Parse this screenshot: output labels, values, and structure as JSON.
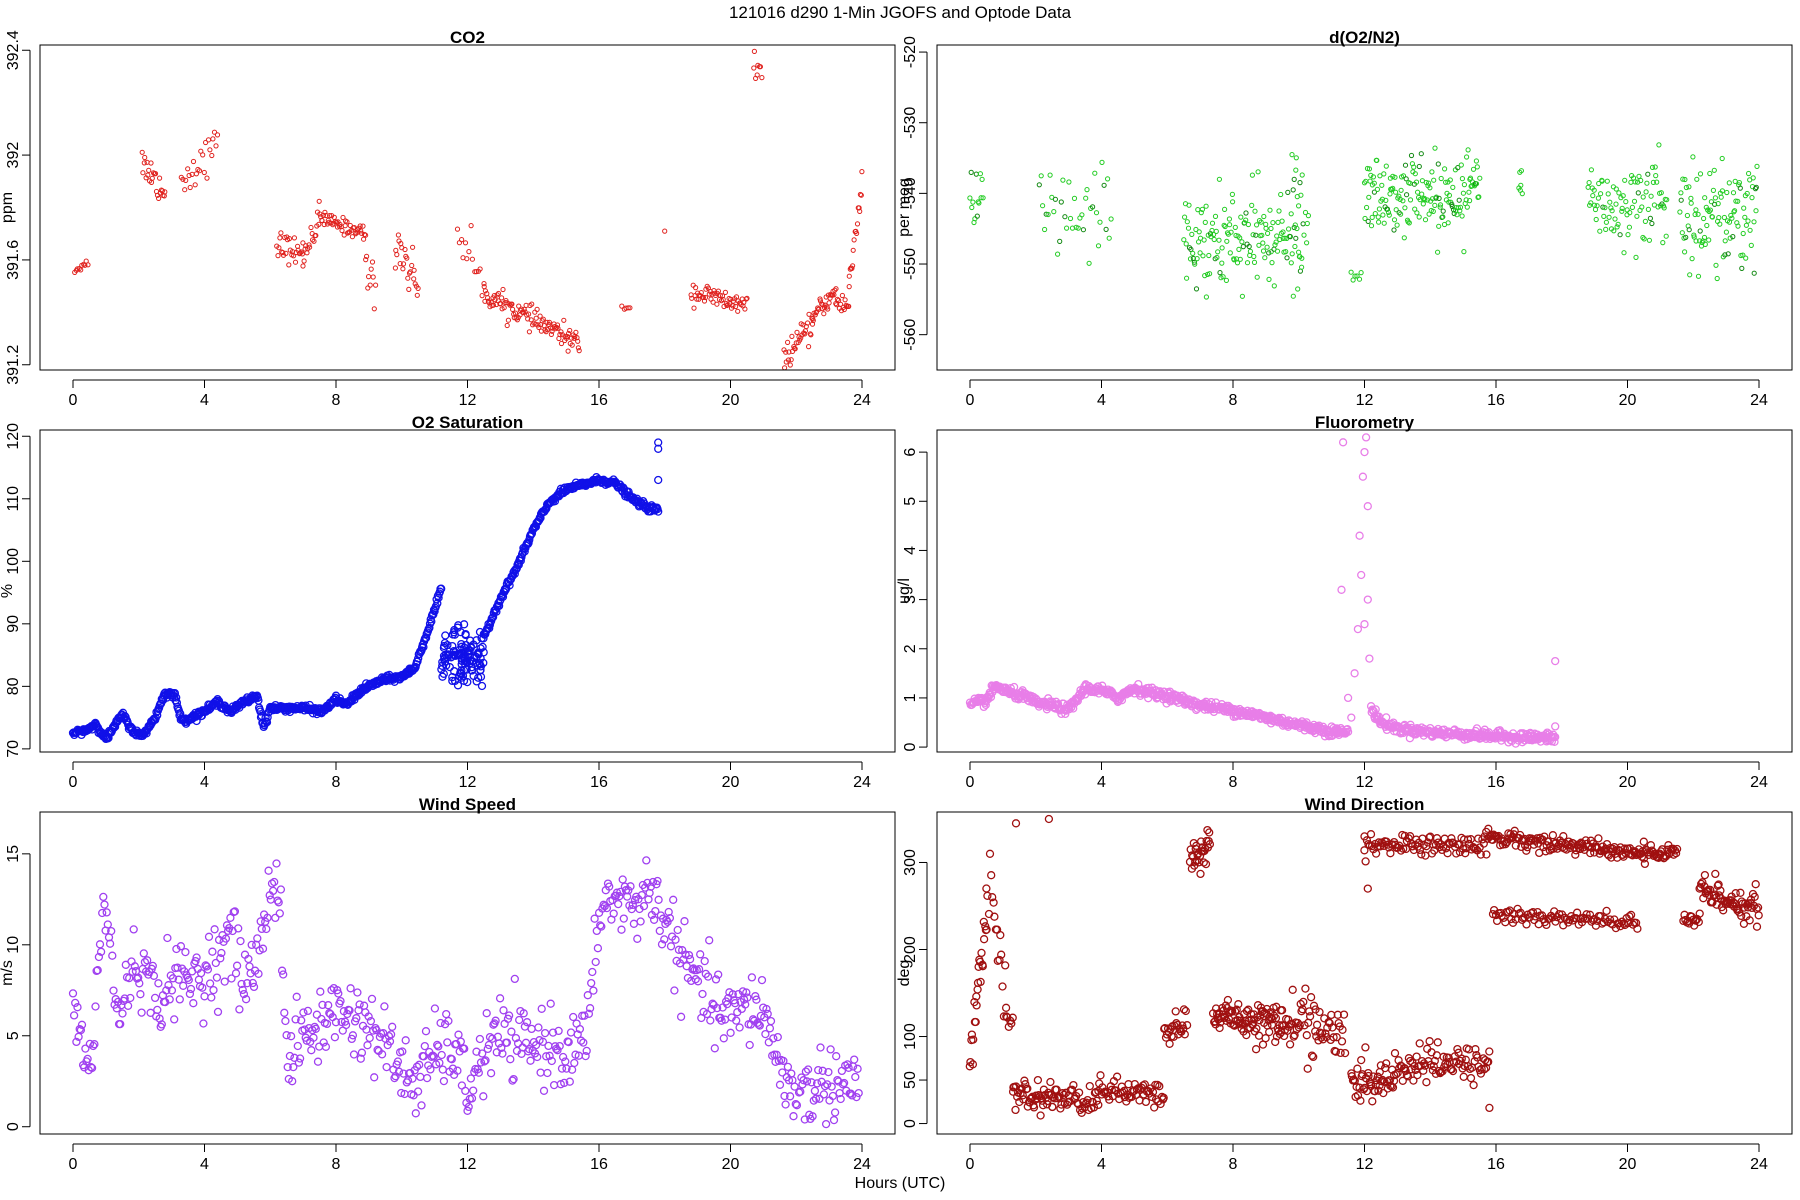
{
  "figure": {
    "title": "121016   d290   1-Min  JGOFS and Optode Data",
    "xlabel": "Hours (UTC)"
  },
  "chart_data": [
    {
      "type": "scatter",
      "title": "CO2",
      "ylabel": "ppm",
      "xlim": [
        0,
        24
      ],
      "ylim": [
        391.18,
        392.42
      ],
      "xticks": [
        0,
        4,
        8,
        12,
        16,
        20,
        24
      ],
      "yticks": [
        391.2,
        391.6,
        392.0,
        392.4
      ],
      "yticks_rotated": true,
      "color": "#e0211d",
      "segments": [
        {
          "x": [
            0.05,
            0.45
          ],
          "y": [
            391.56,
            391.59
          ],
          "n": 10,
          "noise": 0.012
        },
        {
          "x": [
            2.1,
            2.8
          ],
          "y": [
            391.98,
            391.85
          ],
          "n": 25,
          "noise": 0.05
        },
        {
          "x": [
            3.3,
            4.4
          ],
          "y": [
            391.9,
            392.04
          ],
          "n": 25,
          "noise": 0.06
        },
        {
          "x": [
            6.2,
            7.0
          ],
          "y": [
            391.66,
            391.62
          ],
          "n": 28,
          "noise": 0.045
        },
        {
          "x": [
            7.0,
            7.5
          ],
          "y": [
            391.62,
            391.76
          ],
          "n": 18,
          "noise": 0.05
        },
        {
          "x": [
            7.5,
            8.9
          ],
          "y": [
            391.76,
            391.7
          ],
          "n": 50,
          "noise": 0.025
        },
        {
          "x": [
            8.9,
            9.2
          ],
          "y": [
            391.6,
            391.45
          ],
          "n": 10,
          "noise": 0.08
        },
        {
          "x": [
            9.8,
            10.5
          ],
          "y": [
            391.68,
            391.5
          ],
          "n": 25,
          "noise": 0.08
        },
        {
          "x": [
            11.7,
            12.5
          ],
          "y": [
            391.72,
            391.5
          ],
          "n": 15,
          "noise": 0.07
        },
        {
          "x": [
            12.5,
            15.4
          ],
          "y": [
            391.47,
            391.28
          ],
          "n": 110,
          "noise": 0.035
        },
        {
          "x": [
            16.7,
            16.95
          ],
          "y": [
            391.42,
            391.42
          ],
          "n": 5,
          "noise": 0.01
        },
        {
          "x": [
            18.0,
            18.05
          ],
          "y": [
            391.71,
            391.71
          ],
          "n": 1,
          "noise": 0.0
        },
        {
          "x": [
            18.8,
            20.5
          ],
          "y": [
            391.48,
            391.42
          ],
          "n": 60,
          "noise": 0.035
        },
        {
          "x": [
            20.7,
            20.95
          ],
          "y": [
            392.35,
            392.3
          ],
          "n": 8,
          "noise": 0.04
        },
        {
          "x": [
            21.6,
            22.5
          ],
          "y": [
            391.22,
            391.35
          ],
          "n": 35,
          "noise": 0.04
        },
        {
          "x": [
            22.5,
            23.2
          ],
          "y": [
            391.38,
            391.48
          ],
          "n": 30,
          "noise": 0.03
        },
        {
          "x": [
            23.2,
            23.6
          ],
          "y": [
            391.44,
            391.42
          ],
          "n": 15,
          "noise": 0.03
        },
        {
          "x": [
            23.6,
            24.0
          ],
          "y": [
            391.5,
            391.9
          ],
          "n": 18,
          "noise": 0.06
        }
      ]
    },
    {
      "type": "scatter",
      "title": "d(O2/N2)",
      "ylabel": "per meg",
      "xlim": [
        0,
        24
      ],
      "ylim": [
        -565,
        -519
      ],
      "xticks": [
        0,
        4,
        8,
        12,
        16,
        20,
        24
      ],
      "yticks": [
        -560,
        -550,
        -540,
        -530,
        -520
      ],
      "yticks_rotated": true,
      "color": "#22cc22",
      "color_alt": "#118811",
      "segments": [
        {
          "x": [
            0.0,
            0.4
          ],
          "y": [
            -541,
            -541
          ],
          "n": 14,
          "noise": 4.5
        },
        {
          "x": [
            2.1,
            4.3
          ],
          "y": [
            -543,
            -543
          ],
          "n": 40,
          "noise": 6
        },
        {
          "x": [
            6.5,
            10.1
          ],
          "y": [
            -547,
            -547
          ],
          "n": 160,
          "noise": 6
        },
        {
          "x": [
            9.8,
            10.3
          ],
          "y": [
            -542,
            -542
          ],
          "n": 16,
          "noise": 6
        },
        {
          "x": [
            11.6,
            11.9
          ],
          "y": [
            -551,
            -551
          ],
          "n": 6,
          "noise": 1.5
        },
        {
          "x": [
            12.0,
            15.5
          ],
          "y": [
            -540,
            -540
          ],
          "n": 170,
          "noise": 5
        },
        {
          "x": [
            16.7,
            16.8
          ],
          "y": [
            -539,
            -539
          ],
          "n": 6,
          "noise": 3
        },
        {
          "x": [
            18.8,
            21.2
          ],
          "y": [
            -541,
            -541
          ],
          "n": 95,
          "noise": 5.5
        },
        {
          "x": [
            21.6,
            23.95
          ],
          "y": [
            -543,
            -543
          ],
          "n": 110,
          "noise": 6
        }
      ]
    },
    {
      "type": "scatter",
      "title": "O2 Saturation",
      "ylabel": "%",
      "xlim": [
        0,
        24
      ],
      "ylim": [
        69.5,
        121
      ],
      "xticks": [
        0,
        4,
        8,
        12,
        16,
        20,
        24
      ],
      "yticks": [
        70,
        80,
        90,
        100,
        110,
        120
      ],
      "yticks_rotated": true,
      "color": "#1010e8",
      "curve": [
        [
          0.0,
          72.5
        ],
        [
          0.4,
          73
        ],
        [
          0.7,
          74
        ],
        [
          1.0,
          71.5
        ],
        [
          1.5,
          75.5
        ],
        [
          1.8,
          73
        ],
        [
          2.1,
          72
        ],
        [
          2.5,
          75
        ],
        [
          2.8,
          79
        ],
        [
          3.1,
          78.5
        ],
        [
          3.3,
          74.5
        ],
        [
          3.6,
          75
        ],
        [
          4.0,
          76
        ],
        [
          4.4,
          77.5
        ],
        [
          4.8,
          76
        ],
        [
          5.2,
          77.5
        ],
        [
          5.6,
          78.5
        ],
        [
          5.8,
          73.5
        ],
        [
          6.0,
          76.5
        ],
        [
          7.0,
          76.5
        ],
        [
          7.6,
          76
        ],
        [
          8.0,
          78
        ],
        [
          8.3,
          77
        ],
        [
          8.8,
          79.5
        ],
        [
          9.4,
          81
        ],
        [
          10.0,
          81.5
        ],
        [
          10.4,
          83
        ],
        [
          10.8,
          89
        ],
        [
          11.2,
          95.5
        ]
      ],
      "curve2": [
        [
          12.5,
          88
        ],
        [
          13.0,
          94
        ],
        [
          13.5,
          99
        ],
        [
          14.0,
          105
        ],
        [
          14.5,
          109.5
        ],
        [
          15.0,
          111.5
        ],
        [
          16.0,
          113
        ],
        [
          16.5,
          112.5
        ],
        [
          17.0,
          110
        ],
        [
          17.5,
          108.5
        ],
        [
          17.8,
          108.2
        ]
      ],
      "cluster": {
        "x": [
          11.2,
          12.5
        ],
        "y_center": 84.5,
        "noise": 2.5,
        "n": 120
      },
      "outliers": [
        {
          "x": 17.8,
          "y": 119
        },
        {
          "x": 17.8,
          "y": 118
        },
        {
          "x": 17.8,
          "y": 113
        }
      ]
    },
    {
      "type": "scatter",
      "title": "Fluorometry",
      "ylabel": "ug/l",
      "xlim": [
        0,
        24
      ],
      "ylim": [
        -0.1,
        6.45
      ],
      "xticks": [
        0,
        4,
        8,
        12,
        16,
        20,
        24
      ],
      "yticks": [
        0,
        1,
        2,
        3,
        4,
        5,
        6
      ],
      "yticks_rotated": true,
      "color": "#e87ee8",
      "curve": [
        [
          0.0,
          0.85
        ],
        [
          0.5,
          0.95
        ],
        [
          0.8,
          1.25
        ],
        [
          1.2,
          1.1
        ],
        [
          1.6,
          1.05
        ],
        [
          2.0,
          0.9
        ],
        [
          2.5,
          0.85
        ],
        [
          3.0,
          0.75
        ],
        [
          3.5,
          1.2
        ],
        [
          4.0,
          1.15
        ],
        [
          4.5,
          1.0
        ],
        [
          5.0,
          1.2
        ],
        [
          5.5,
          1.1
        ],
        [
          6.0,
          1.05
        ],
        [
          7.0,
          0.85
        ],
        [
          8.0,
          0.75
        ],
        [
          9.0,
          0.6
        ],
        [
          10.0,
          0.45
        ],
        [
          11.0,
          0.32
        ],
        [
          11.5,
          0.3
        ]
      ],
      "curve2": [
        [
          12.2,
          0.8
        ],
        [
          12.5,
          0.5
        ],
        [
          13.0,
          0.38
        ],
        [
          14.0,
          0.3
        ],
        [
          15.0,
          0.26
        ],
        [
          16.0,
          0.22
        ],
        [
          17.8,
          0.18
        ]
      ],
      "spike": [
        {
          "x": 11.3,
          "y": 3.2
        },
        {
          "x": 11.35,
          "y": 6.2
        },
        {
          "x": 11.5,
          "y": 1.0
        },
        {
          "x": 11.6,
          "y": 0.6
        },
        {
          "x": 11.7,
          "y": 1.5
        },
        {
          "x": 11.8,
          "y": 2.4
        },
        {
          "x": 11.9,
          "y": 3.5
        },
        {
          "x": 12.0,
          "y": 6.0
        },
        {
          "x": 12.05,
          "y": 6.3
        },
        {
          "x": 12.1,
          "y": 4.9
        },
        {
          "x": 12.0,
          "y": 2.5
        },
        {
          "x": 12.15,
          "y": 1.8
        },
        {
          "x": 11.95,
          "y": 5.5
        },
        {
          "x": 11.85,
          "y": 4.3
        },
        {
          "x": 12.1,
          "y": 3.0
        }
      ],
      "outliers": [
        {
          "x": 17.8,
          "y": 1.75
        },
        {
          "x": 17.8,
          "y": 0.42
        }
      ]
    },
    {
      "type": "scatter",
      "title": "Wind Speed",
      "ylabel": "m/s",
      "xlim": [
        0,
        24
      ],
      "ylim": [
        -0.4,
        17.3
      ],
      "xticks": [
        0,
        4,
        8,
        12,
        16,
        20,
        24
      ],
      "yticks": [
        0,
        5,
        10,
        15
      ],
      "yticks_rotated": true,
      "color": "#a040f0",
      "noise": 1.0,
      "n": 700,
      "curve": [
        [
          0.0,
          7
        ],
        [
          0.3,
          4
        ],
        [
          0.6,
          3.5
        ],
        [
          0.9,
          12.5
        ],
        [
          1.1,
          10.5
        ],
        [
          1.4,
          5.5
        ],
        [
          1.7,
          8.5
        ],
        [
          2.0,
          9
        ],
        [
          2.5,
          7
        ],
        [
          3.0,
          8
        ],
        [
          3.5,
          8
        ],
        [
          4.0,
          8.5
        ],
        [
          4.5,
          9.5
        ],
        [
          4.8,
          10.5
        ],
        [
          5.2,
          8
        ],
        [
          5.7,
          9.5
        ],
        [
          6.0,
          13.5
        ],
        [
          6.3,
          13
        ],
        [
          6.5,
          3.5
        ],
        [
          7.0,
          5
        ],
        [
          7.5,
          5.5
        ],
        [
          8.0,
          6.5
        ],
        [
          8.5,
          6
        ],
        [
          9.0,
          5.5
        ],
        [
          9.5,
          4.5
        ],
        [
          10.0,
          3
        ],
        [
          10.5,
          2.5
        ],
        [
          11.0,
          4
        ],
        [
          11.5,
          4.5
        ],
        [
          12.0,
          2
        ],
        [
          12.5,
          4
        ],
        [
          13.0,
          5
        ],
        [
          13.5,
          4.5
        ],
        [
          14.0,
          4.5
        ],
        [
          14.5,
          4.5
        ],
        [
          15.0,
          4
        ],
        [
          15.5,
          4.5
        ],
        [
          15.8,
          7
        ],
        [
          16.0,
          12
        ],
        [
          16.5,
          12.5
        ],
        [
          17.0,
          12
        ],
        [
          17.5,
          13
        ],
        [
          18.0,
          11.5
        ],
        [
          18.5,
          9
        ],
        [
          19.0,
          8
        ],
        [
          19.5,
          6.5
        ],
        [
          20.0,
          6
        ],
        [
          20.5,
          6.5
        ],
        [
          21.0,
          6.5
        ],
        [
          21.3,
          4.5
        ],
        [
          21.7,
          2.5
        ],
        [
          22.0,
          1.5
        ],
        [
          22.5,
          2
        ],
        [
          23.0,
          2.5
        ],
        [
          23.5,
          2.5
        ],
        [
          23.9,
          2.5
        ]
      ]
    },
    {
      "type": "scatter",
      "title": "Wind Direction",
      "ylabel": "deg",
      "xlim": [
        0,
        24
      ],
      "ylim": [
        -12,
        358
      ],
      "xticks": [
        0,
        4,
        8,
        12,
        16,
        20,
        24
      ],
      "yticks": [
        0,
        50,
        100,
        200,
        300
      ],
      "yticks_rotated": true,
      "color": "#a01010",
      "segments": [
        {
          "x": [
            0.0,
            0.5
          ],
          "y": [
            75,
            230
          ],
          "n": 25,
          "noise": 25
        },
        {
          "x": [
            0.5,
            1.1
          ],
          "y": [
            290,
            150
          ],
          "n": 18,
          "noise": 30
        },
        {
          "x": [
            1.1,
            1.3
          ],
          "y": [
            120,
            120
          ],
          "n": 6,
          "noise": 8
        },
        {
          "x": [
            1.3,
            2.5
          ],
          "y": [
            30,
            30
          ],
          "n": 45,
          "noise": 14
        },
        {
          "x": [
            2.5,
            3.9
          ],
          "y": [
            30,
            25
          ],
          "n": 45,
          "noise": 13
        },
        {
          "x": [
            3.9,
            5.9
          ],
          "y": [
            40,
            30
          ],
          "n": 60,
          "noise": 12
        },
        {
          "x": [
            5.9,
            6.6
          ],
          "y": [
            105,
            115
          ],
          "n": 25,
          "noise": 14
        },
        {
          "x": [
            6.7,
            7.3
          ],
          "y": [
            300,
            320
          ],
          "n": 30,
          "noise": 20
        },
        {
          "x": [
            7.4,
            9.5
          ],
          "y": [
            125,
            115
          ],
          "n": 95,
          "noise": 18
        },
        {
          "x": [
            9.5,
            10.5
          ],
          "y": [
            110,
            120
          ],
          "n": 35,
          "noise": 30
        },
        {
          "x": [
            10.5,
            11.4
          ],
          "y": [
            110,
            100
          ],
          "n": 30,
          "noise": 25
        },
        {
          "x": [
            11.6,
            12.9
          ],
          "y": [
            45,
            50
          ],
          "n": 50,
          "noise": 18
        },
        {
          "x": [
            12.9,
            15.8
          ],
          "y": [
            65,
            70
          ],
          "n": 90,
          "noise": 18
        },
        {
          "x": [
            12.0,
            15.7
          ],
          "y": [
            320,
            320
          ],
          "n": 95,
          "noise": 10
        },
        {
          "x": [
            15.7,
            20.5
          ],
          "y": [
            330,
            310
          ],
          "n": 150,
          "noise": 8
        },
        {
          "x": [
            20.5,
            21.5
          ],
          "y": [
            310,
            312
          ],
          "n": 35,
          "noise": 7
        },
        {
          "x": [
            15.9,
            20.3
          ],
          "y": [
            240,
            230
          ],
          "n": 95,
          "noise": 9
        },
        {
          "x": [
            21.7,
            22.2
          ],
          "y": [
            230,
            235
          ],
          "n": 15,
          "noise": 8
        },
        {
          "x": [
            22.2,
            24.0
          ],
          "y": [
            270,
            245
          ],
          "n": 70,
          "noise": 16
        }
      ],
      "outliers": [
        {
          "x": 1.4,
          "y": 345
        },
        {
          "x": 2.4,
          "y": 350
        },
        {
          "x": 12.0,
          "y": 330
        },
        {
          "x": 12.1,
          "y": 270
        },
        {
          "x": 15.8,
          "y": 18
        }
      ]
    }
  ]
}
